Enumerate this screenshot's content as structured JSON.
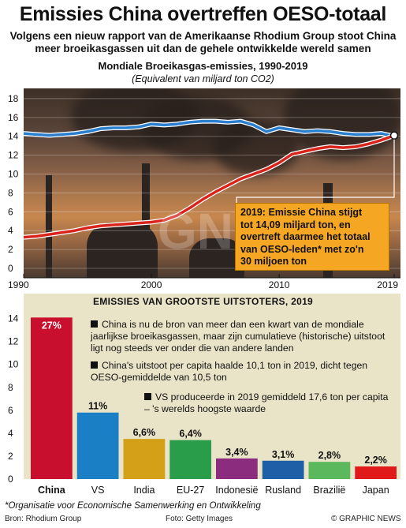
{
  "header": {
    "title": "Emissies China overtreffen OESO-totaal",
    "subtitle_line1": "Volgens een nieuw rapport van de Amerikaanse Rhodium Group stoot China",
    "subtitle_line2": "meer broeikasgassen uit dan de gehele ontwikkelde wereld samen"
  },
  "colors": {
    "oeso_line": "#2a7fcf",
    "china_line": "#d9241c",
    "bar_colors": [
      "#c8102e",
      "#1a7fc4",
      "#d4a017",
      "#2a9d4a",
      "#8b2c7f",
      "#1f5fa8",
      "#5cb85c",
      "#e0191b"
    ],
    "callout": "#f5a623"
  },
  "chart_data": [
    {
      "type": "line",
      "title": "Mondiale Broeikasgas-emissies, 1990-2019",
      "subtitle": "(Equivalent van miljard ton CO2)",
      "x_ticks": [
        "1990",
        "2000",
        "2010",
        "2019"
      ],
      "xlim": [
        1990,
        2019
      ],
      "y_ticks": [
        "0",
        "2",
        "4",
        "6",
        "8",
        "10",
        "12",
        "14",
        "16",
        "18"
      ],
      "ylim": [
        0,
        19
      ],
      "grid": true,
      "series": [
        {
          "name": "OESO",
          "x": [
            1990,
            1991,
            1992,
            1993,
            1994,
            1995,
            1996,
            1997,
            1998,
            1999,
            2000,
            2001,
            2002,
            2003,
            2004,
            2005,
            2006,
            2007,
            2008,
            2009,
            2010,
            2011,
            2012,
            2013,
            2014,
            2015,
            2016,
            2017,
            2018,
            2019
          ],
          "values": [
            14.3,
            14.2,
            14.1,
            14.2,
            14.3,
            14.5,
            14.8,
            14.9,
            14.9,
            15.0,
            15.3,
            15.2,
            15.3,
            15.5,
            15.6,
            15.6,
            15.5,
            15.6,
            15.2,
            14.5,
            14.9,
            14.7,
            14.5,
            14.6,
            14.5,
            14.3,
            14.2,
            14.2,
            14.3,
            14.0
          ]
        },
        {
          "name": "China",
          "x": [
            1990,
            1991,
            1992,
            1993,
            1994,
            1995,
            1996,
            1997,
            1998,
            1999,
            2000,
            2001,
            2002,
            2003,
            2004,
            2005,
            2006,
            2007,
            2008,
            2009,
            2010,
            2011,
            2012,
            2013,
            2014,
            2015,
            2016,
            2017,
            2018,
            2019
          ],
          "values": [
            3.3,
            3.4,
            3.6,
            3.8,
            4.0,
            4.3,
            4.5,
            4.6,
            4.7,
            4.8,
            4.9,
            5.1,
            5.6,
            6.4,
            7.3,
            8.1,
            8.8,
            9.5,
            10.0,
            10.5,
            11.2,
            12.1,
            12.4,
            12.7,
            12.9,
            12.8,
            12.9,
            13.2,
            13.6,
            14.09
          ]
        }
      ],
      "callout": {
        "line1": "2019: Emissie China stijgt",
        "line2": "tot 14,09 miljard ton, en",
        "line3": "overtreft daarmee het totaal",
        "line4": "van OESO-leden* met zo'n",
        "line5": "30 miljoen ton"
      }
    },
    {
      "type": "bar",
      "title": "Emissies van grootste uitstoters, 2019",
      "categories": [
        "China",
        "VS",
        "India",
        "EU-27",
        "Indonesië",
        "Rusland",
        "Brazilië",
        "Japan"
      ],
      "values": [
        14.09,
        5.8,
        3.5,
        3.4,
        1.8,
        1.6,
        1.5,
        1.1
      ],
      "data_labels": [
        "27%",
        "11%",
        "6,6%",
        "6,4%",
        "3,4%",
        "3,1%",
        "2,8%",
        "2,2%"
      ],
      "y_ticks": [
        "0",
        "2",
        "4",
        "6",
        "8",
        "10",
        "12",
        "14"
      ],
      "ylim": [
        0,
        14.8
      ],
      "notes": [
        "China is nu de bron van meer dan een kwart van de mondiale jaarlijkse broeikasgassen, maar zijn cumulatieve (historische) uitstoot ligt nog steeds ver onder die van andere landen",
        "China's uitstoot per capita  haalde 10,1 ton in 2019, dicht tegen OESO-gemiddelde van 10,5 ton",
        "VS produceerde in 2019 gemiddeld 17,6 ton per capita – 's werelds hoogste waarde"
      ]
    }
  ],
  "footer": {
    "footnote": "*Organisatie voor Economische Samenwerking en Ontwikkeling",
    "source": "Bron: Rhodium Group",
    "photo": "Foto: Getty Images",
    "credit": "© GRAPHIC NEWS",
    "watermark": "GN"
  }
}
